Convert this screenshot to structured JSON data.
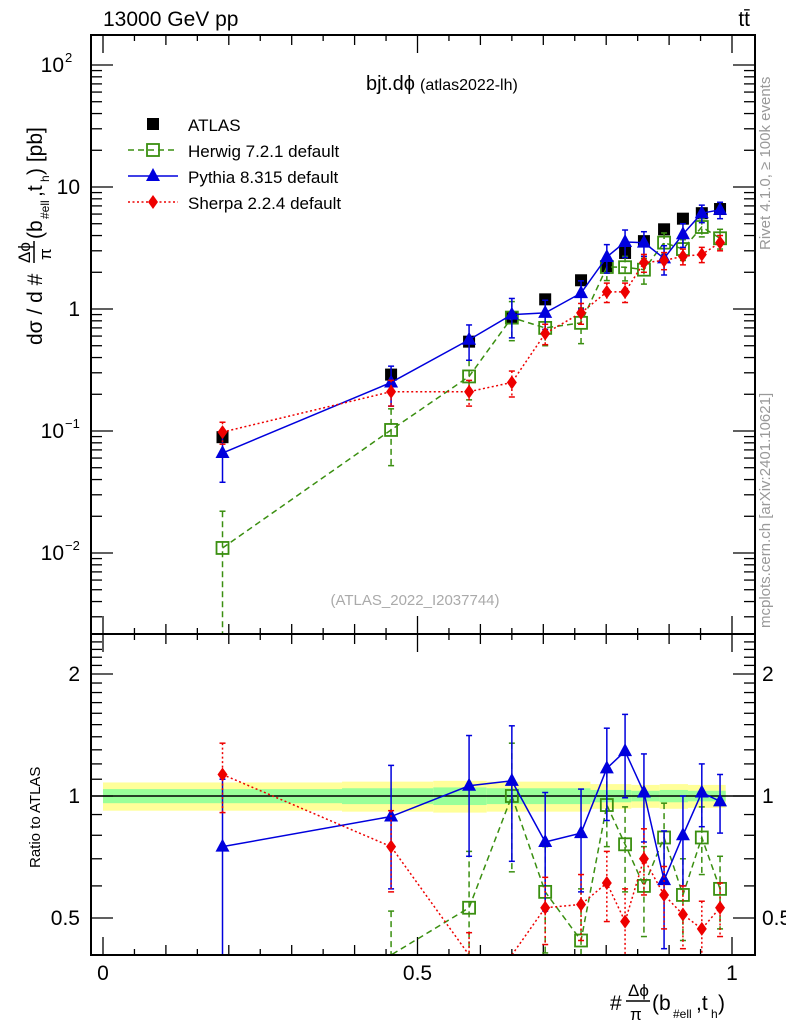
{
  "header": {
    "energy_label": "13000 GeV pp",
    "process_label": "tt̄"
  },
  "side_labels": {
    "rivet": "Rivet 4.1.0, ≥ 100k events",
    "mcplots": "mcplots.cern.ch [arXiv:2401.10621]"
  },
  "chart_data": [
    {
      "type": "scatter",
      "panel": "main",
      "title": "bjt.dϕ",
      "subtitle": "(atlas2022-lh)",
      "watermark": "(ATLAS_2022_I2037744)",
      "xlabel": "#Δϕ/π(b_#ell,t_h)",
      "ylabel": "dσ / d #Δϕ/π(b_#ell,t_h) [pb]",
      "yscale": "log",
      "xlim": [
        -0.02,
        1.03
      ],
      "ylim": [
        0.0022,
        176
      ],
      "yticks": [
        {
          "value": 100,
          "label": "10^2"
        },
        {
          "value": 10,
          "label": "10"
        },
        {
          "value": 1,
          "label": "1"
        },
        {
          "value": 0.1,
          "label": "10^-1"
        },
        {
          "value": 0.01,
          "label": "10^-2"
        }
      ],
      "legend_position": "top-left",
      "x": [
        0.19,
        0.458,
        0.582,
        0.65,
        0.703,
        0.76,
        0.801,
        0.83,
        0.86,
        0.892,
        0.922,
        0.952,
        0.981
      ],
      "series": [
        {
          "name": "ATLAS",
          "color": "#000000",
          "marker": "square-filled",
          "line": "none",
          "values": [
            0.089,
            0.29,
            0.54,
            0.86,
            1.2,
            1.72,
            2.25,
            2.88,
            3.6,
            4.5,
            5.5,
            6.1,
            6.6
          ],
          "errors": [
            0.005,
            0.01,
            0.02,
            0.03,
            0.04,
            0.05,
            0.06,
            0.08,
            0.1,
            0.12,
            0.15,
            0.17,
            0.2
          ]
        },
        {
          "name": "Herwig 7.2.1 default",
          "color": "#3a8f10",
          "marker": "square-open",
          "line": "dashed",
          "values": [
            0.011,
            0.102,
            0.28,
            0.85,
            0.7,
            0.77,
            2.21,
            2.2,
            2.1,
            3.5,
            3.1,
            4.7,
            3.8
          ],
          "errors": [
            0.011,
            0.05,
            0.1,
            0.3,
            0.2,
            0.25,
            0.5,
            0.5,
            0.5,
            0.7,
            0.6,
            0.8,
            0.7
          ]
        },
        {
          "name": "Pythia 8.315 default",
          "color": "#0000dd",
          "marker": "triangle",
          "line": "solid",
          "values": [
            0.066,
            0.25,
            0.56,
            0.9,
            0.93,
            1.35,
            2.67,
            3.54,
            3.5,
            2.6,
            4.1,
            6.1,
            6.5
          ],
          "errors": [
            0.028,
            0.09,
            0.18,
            0.32,
            0.25,
            0.35,
            0.7,
            0.9,
            0.8,
            0.7,
            0.9,
            1.0,
            1.0
          ]
        },
        {
          "name": "Sherpa 2.2.4 default",
          "color": "#ee0000",
          "marker": "diamond",
          "line": "dotted",
          "values": [
            0.098,
            0.21,
            0.21,
            0.25,
            0.63,
            0.93,
            1.38,
            1.38,
            2.4,
            2.5,
            2.7,
            2.8,
            3.5
          ],
          "errors": [
            0.02,
            0.05,
            0.05,
            0.06,
            0.12,
            0.18,
            0.25,
            0.25,
            0.4,
            0.4,
            0.4,
            0.4,
            0.5
          ]
        }
      ]
    },
    {
      "type": "scatter",
      "panel": "ratio",
      "ylabel": "Ratio to ATLAS",
      "yscale": "log",
      "xlim": [
        -0.02,
        1.03
      ],
      "ylim": [
        0.405,
        2.5
      ],
      "yticks": [
        {
          "value": 2,
          "label": "2"
        },
        {
          "value": 1,
          "label": "1"
        },
        {
          "value": 0.5,
          "label": "0.5"
        }
      ],
      "xticks": [
        {
          "value": 0,
          "label": "0"
        },
        {
          "value": 0.5,
          "label": "0.5"
        },
        {
          "value": 1,
          "label": "1"
        }
      ],
      "reference_line": 1,
      "bands": {
        "outer_color": "#ffff99",
        "inner_color": "#99ff99",
        "edges": [
          0.0,
          0.38,
          0.525,
          0.61,
          0.775,
          0.84,
          0.885,
          0.93,
          0.99
        ],
        "outer": [
          0.08,
          0.085,
          0.09,
          0.085,
          0.07,
          0.065,
          0.07,
          0.065
        ],
        "inner": [
          0.04,
          0.045,
          0.05,
          0.045,
          0.035,
          0.03,
          0.035,
          0.03
        ]
      },
      "x": [
        0.19,
        0.458,
        0.582,
        0.65,
        0.703,
        0.76,
        0.801,
        0.83,
        0.86,
        0.892,
        0.922,
        0.952,
        0.981
      ],
      "series": [
        {
          "name": "Herwig 7.2.1 default",
          "color": "#3a8f10",
          "marker": "square-open",
          "line": "dashed",
          "values": [
            0.12,
            0.35,
            0.53,
            1.0,
            0.58,
            0.44,
            0.95,
            0.76,
            0.6,
            0.79,
            0.57,
            0.79,
            0.59
          ],
          "errors": [
            0.12,
            0.17,
            0.2,
            0.35,
            0.17,
            0.15,
            0.2,
            0.18,
            0.15,
            0.17,
            0.13,
            0.15,
            0.12
          ]
        },
        {
          "name": "Pythia 8.315 default",
          "color": "#0000dd",
          "marker": "triangle",
          "line": "solid",
          "values": [
            0.75,
            0.89,
            1.06,
            1.09,
            0.77,
            0.81,
            1.17,
            1.29,
            1.02,
            0.62,
            0.8,
            1.02,
            0.97
          ],
          "errors": [
            0.35,
            0.3,
            0.35,
            0.4,
            0.25,
            0.23,
            0.3,
            0.3,
            0.25,
            0.2,
            0.2,
            0.18,
            0.16
          ]
        },
        {
          "name": "Sherpa 2.2.4 default",
          "color": "#ee0000",
          "marker": "diamond",
          "line": "dotted",
          "values": [
            1.13,
            0.75,
            0.36,
            0.31,
            0.53,
            0.54,
            0.61,
            0.49,
            0.7,
            0.57,
            0.51,
            0.47,
            0.53
          ],
          "errors": [
            0.22,
            0.17,
            0.1,
            0.08,
            0.1,
            0.1,
            0.12,
            0.1,
            0.13,
            0.1,
            0.09,
            0.08,
            0.08
          ]
        }
      ]
    }
  ]
}
